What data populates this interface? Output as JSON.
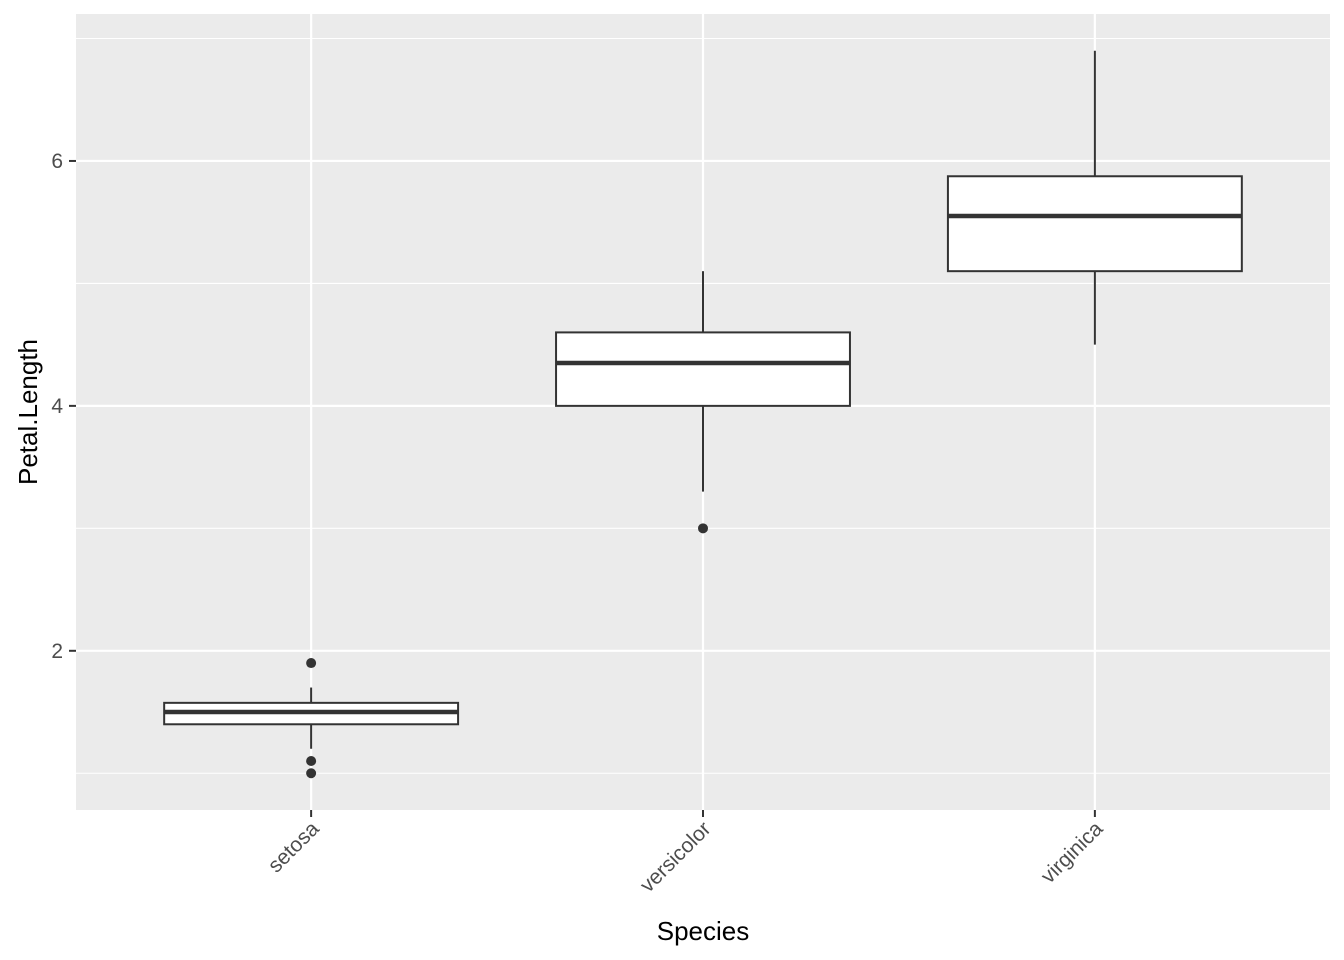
{
  "chart_data": {
    "type": "boxplot",
    "title": "",
    "xlabel": "Species",
    "ylabel": "Petal.Length",
    "ylim": [
      0.7,
      7.2
    ],
    "y_ticks": [
      2,
      4,
      6
    ],
    "y_tick_labels": [
      "2",
      "4",
      "6"
    ],
    "y_minor_ticks": [
      1,
      3,
      5,
      7
    ],
    "categories": [
      "setosa",
      "versicolor",
      "virginica"
    ],
    "x_tick_rotation_deg": -45,
    "grid": true,
    "legend": "none",
    "colors": {
      "panel_background": "#ebebeb",
      "grid_major": "#ffffff",
      "grid_minor": "#ffffff",
      "box_fill": "#ffffff",
      "box_stroke": "#333333",
      "outlier": "#333333",
      "tick_mark": "#333333",
      "tick_label": "#4d4d4d",
      "axis_title": "#000000"
    },
    "boxes": [
      {
        "category": "setosa",
        "lower_whisker": 1.2,
        "q1": 1.4,
        "median": 1.5,
        "q3": 1.575,
        "upper_whisker": 1.7,
        "outliers": [
          1.0,
          1.1,
          1.9
        ]
      },
      {
        "category": "versicolor",
        "lower_whisker": 3.3,
        "q1": 4.0,
        "median": 4.35,
        "q3": 4.6,
        "upper_whisker": 5.1,
        "outliers": [
          3.0
        ]
      },
      {
        "category": "virginica",
        "lower_whisker": 4.5,
        "q1": 5.1,
        "median": 5.55,
        "q3": 5.875,
        "upper_whisker": 6.9,
        "outliers": []
      }
    ]
  }
}
